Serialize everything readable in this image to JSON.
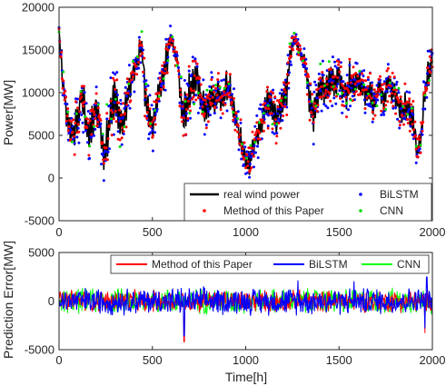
{
  "chart_data": [
    {
      "type": "line",
      "ylabel": "Power[MW]",
      "xlabel": "",
      "xlim": [
        0,
        2000
      ],
      "ylim": [
        -5000,
        20000
      ],
      "x_ticks": [
        0,
        500,
        1000,
        1500,
        2000
      ],
      "y_ticks": [
        -5000,
        0,
        5000,
        10000,
        15000,
        20000
      ],
      "x_tick_labels": [
        "0",
        "500",
        "1000",
        "1500",
        "2000"
      ],
      "y_tick_labels": [
        "-5000",
        "0",
        "5000",
        "10000",
        "15000",
        "20000"
      ],
      "legend_position": "bottom",
      "legend": [
        "real wind power",
        "Method of this Paper",
        "BiLSTM",
        "CNN"
      ],
      "series": [
        {
          "name": "real wind power",
          "style": "line",
          "color": "#000000"
        },
        {
          "name": "Method of this Paper",
          "style": "dots",
          "color": "#ff0000"
        },
        {
          "name": "BiLSTM",
          "style": "dots",
          "color": "#0000ff"
        },
        {
          "name": "CNN",
          "style": "dots",
          "color": "#00ff00"
        }
      ],
      "x": [
        0,
        20,
        40,
        60,
        80,
        100,
        120,
        140,
        160,
        180,
        200,
        220,
        240,
        260,
        280,
        300,
        320,
        340,
        360,
        380,
        400,
        420,
        440,
        460,
        480,
        500,
        520,
        540,
        560,
        580,
        600,
        620,
        640,
        660,
        680,
        700,
        720,
        740,
        760,
        780,
        800,
        820,
        840,
        860,
        880,
        900,
        920,
        940,
        960,
        980,
        1000,
        1020,
        1040,
        1060,
        1080,
        1100,
        1120,
        1140,
        1160,
        1180,
        1200,
        1220,
        1240,
        1260,
        1280,
        1300,
        1320,
        1340,
        1360,
        1380,
        1400,
        1420,
        1440,
        1460,
        1480,
        1500,
        1520,
        1540,
        1560,
        1580,
        1600,
        1620,
        1640,
        1660,
        1680,
        1700,
        1720,
        1740,
        1760,
        1780,
        1800,
        1820,
        1840,
        1860,
        1880,
        1900,
        1920,
        1940,
        1960,
        1980,
        2000
      ],
      "envelope_low": [
        16500,
        9000,
        5000,
        3500,
        2000,
        4000,
        6000,
        4000,
        1500,
        3000,
        5000,
        3000,
        0,
        1000,
        4000,
        5000,
        4000,
        3000,
        5500,
        8000,
        10000,
        11000,
        14000,
        7000,
        5000,
        3000,
        6000,
        8000,
        9000,
        11000,
        15000,
        13000,
        10000,
        4000,
        5000,
        7000,
        8000,
        9500,
        6000,
        5000,
        6000,
        7000,
        6000,
        7000,
        6000,
        8000,
        7000,
        5000,
        3000,
        1000,
        0,
        -500,
        1000,
        2000,
        3000,
        5000,
        6000,
        5000,
        4000,
        5000,
        6000,
        7000,
        13000,
        15000,
        14000,
        13000,
        12000,
        6000,
        4000,
        6000,
        8000,
        7000,
        8000,
        9000,
        8000,
        9000,
        8000,
        7000,
        9000,
        8000,
        9000,
        8000,
        7000,
        8000,
        6000,
        7000,
        8000,
        6000,
        9000,
        8000,
        7000,
        6000,
        5000,
        6000,
        5000,
        4000,
        1000,
        3000,
        8000,
        10000,
        12000
      ],
      "envelope_high": [
        18000,
        14000,
        11000,
        8000,
        10000,
        12000,
        14000,
        12000,
        9000,
        11000,
        12000,
        10000,
        6000,
        9000,
        13000,
        15000,
        12000,
        10000,
        12000,
        14000,
        16000,
        17000,
        19000,
        15000,
        11000,
        9000,
        12000,
        14000,
        16000,
        18000,
        19000,
        17000,
        16000,
        12000,
        12000,
        14000,
        15000,
        16000,
        14000,
        12000,
        13000,
        14000,
        13000,
        14000,
        13000,
        15000,
        13000,
        11000,
        9000,
        7000,
        5000,
        4000,
        7000,
        9000,
        10000,
        12000,
        14000,
        12000,
        11000,
        12000,
        13000,
        15000,
        17000,
        18000,
        17000,
        16000,
        15000,
        14000,
        11000,
        13000,
        15000,
        14000,
        15000,
        16000,
        15000,
        16000,
        14000,
        13000,
        15000,
        14000,
        15000,
        14000,
        13000,
        14000,
        12000,
        13000,
        14000,
        12000,
        15000,
        14000,
        13000,
        12000,
        11000,
        12000,
        11000,
        10000,
        6000,
        9000,
        13000,
        15000,
        17000
      ]
    },
    {
      "type": "line",
      "ylabel": "Prediction Error[MW]",
      "xlabel": "Time[h]",
      "xlim": [
        0,
        2000
      ],
      "ylim": [
        -5000,
        5000
      ],
      "x_ticks": [
        0,
        500,
        1000,
        1500,
        2000
      ],
      "y_ticks": [
        -5000,
        0,
        5000
      ],
      "x_tick_labels": [
        "0",
        "500",
        "1000",
        "1500",
        "2000"
      ],
      "y_tick_labels": [
        "-5000",
        "0",
        "5000"
      ],
      "legend_position": "top",
      "legend": [
        "Method of this Paper",
        "BiLSTM",
        "CNN"
      ],
      "series": [
        {
          "name": "Method of this Paper",
          "color": "#ff0000"
        },
        {
          "name": "BiLSTM",
          "color": "#0000ff"
        },
        {
          "name": "CNN",
          "color": "#00ff00"
        }
      ],
      "typical_error_range": [
        -2000,
        2000
      ],
      "peak_errors": [
        {
          "x": 670,
          "y": -4200
        },
        {
          "x": 1960,
          "y": -3300
        },
        {
          "x": 1970,
          "y": 2900
        },
        {
          "x": 1280,
          "y": 2500
        },
        {
          "x": 1580,
          "y": 2400
        }
      ]
    }
  ]
}
